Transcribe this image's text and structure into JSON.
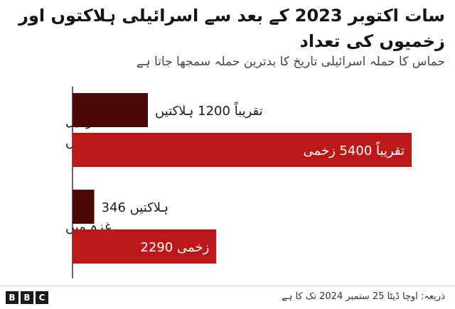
{
  "header": {
    "title": "سات اکتوبر 2023 کے بعد سے اسرائیلی ہلاکتوں اور زخمیوں کی تعداد",
    "subtitle": "حماس کا حملہ اسرائیلی تاریخ کا بدترین حملہ سمجھا جاتا ہے"
  },
  "footer": {
    "source": "ذریعہ: اوچا ڈیٹا 25 ستمبر 2024 تک کا ہے",
    "logo_letters": [
      "B",
      "B",
      "C"
    ]
  },
  "colors": {
    "deaths": "#4a0a0a",
    "injured": "#bb1919",
    "axis": "#333333"
  },
  "chart_data": {
    "type": "bar",
    "orientation": "horizontal",
    "categories": [
      "اسرائیل میں",
      "غزہ میں"
    ],
    "series": [
      {
        "key": "deaths",
        "values": [
          1200,
          346
        ],
        "labels": [
          "تقریباً 1200 ہلاکتیں",
          "346 ہلاکتیں"
        ]
      },
      {
        "key": "injured",
        "values": [
          5400,
          2290
        ],
        "labels": [
          "تقریباً 5400 زخمی",
          "2290 زخمی"
        ]
      }
    ],
    "xlim": [
      0,
      5400
    ],
    "grid": false,
    "legend": "none"
  }
}
